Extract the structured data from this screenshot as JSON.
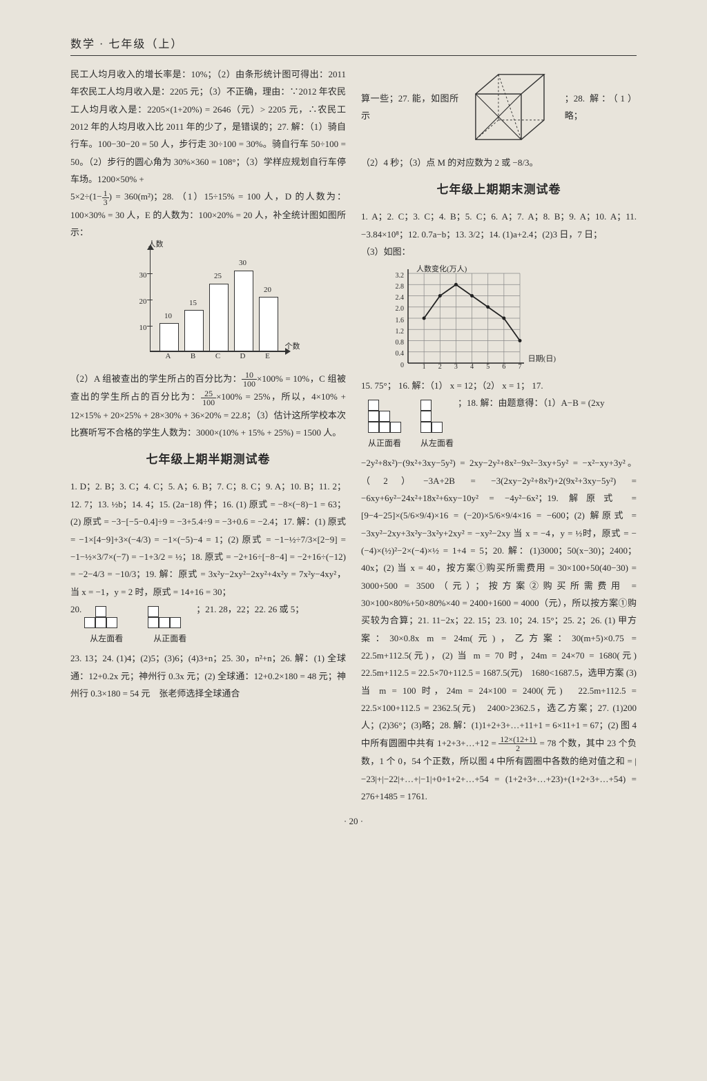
{
  "header": "数学 · 七年级（上）",
  "page_number": "· 20 ·",
  "left": {
    "para1": "民工人均月收入的增长率是：10%；（2）由条形统计图可得出：2011 年农民工人均月收入是：2205 元；（3）不正确，理由：∵2012 年农民工人均月收入是：2205×(1+20%) = 2646（元）> 2205 元，∴农民工 2012 年的人均月收入比 2011 年的少了，是错误的；27. 解：（1）骑自行车。100−30−20 = 50 人，步行走 30÷100 = 30%。骑自行车 50÷100 = 50。（2）步行的圆心角为 30%×360 = 108°；（3）学样应规划自行车停车场。1200×50% +",
    "para2_before_frac": "5×2÷(1−",
    "para2_frac_n": "1",
    "para2_frac_d": "3",
    "para2_after_frac": ") = 360(m²)；28. （1）15÷15% = 100 人，D 的人数为：100×30% = 30 人，E 的人数为：100×20% = 20 人，补全统计图如图所示：",
    "barchart": {
      "ytitle": "人数",
      "xtitle": "个数",
      "y_ticks": [
        10,
        20,
        30
      ],
      "y_max": 35,
      "categories": [
        "A",
        "B",
        "C",
        "D",
        "E"
      ],
      "values": [
        10,
        15,
        25,
        30,
        20
      ],
      "bar_color": "#ffffff",
      "border_color": "#333333"
    },
    "para3": "（2）A 组被查出的学生所占的百分比为：",
    "frac10_n": "10",
    "frac10_d": "100",
    "para3b": "×100% = 10%，C 组被查出的学生所占的百分比为：",
    "frac25_n": "25",
    "frac25_d": "100",
    "para3c": "×100% = 25%，所以，4×10% + 12×15% + 20×25% + 28×30% + 36×20% = 22.8；（3）估计这所学校本次比赛听写不合格的学生人数为：3000×(10% + 15% + 25%) = 1500 人。",
    "section_title": "七年级上期半期测试卷",
    "midterm": "1. D；2. B；3. C；4. C；5. A；6. B；7. C；8. C；9. A；10. B；11. 2；12. 7；13. ½b；14. 4；15. (2a−18) 件；16. (1) 原式 = −8×(−8)−1 = 63；(2) 原式 = −3−[−5−0.4]÷9 = −3+5.4÷9 = −3+0.6 = −2.4；17. 解：(1) 原式 = −1×[4−9]+3×(−4/3) = −1×(−5)−4 = 1；(2) 原式 = −1−½÷7/3×[2−9] = −1−½×3/7×(−7) = −1+3/2 = ½；18. 原式 = −2+16÷[−8−4] = −2+16÷(−12) = −2−4/3 = −10/3；19. 解：原式 = 3x²y−2xy²−2xy²+4x²y = 7x²y−4xy²，当 x = −1，y = 2 时，原式 = 14+16 = 30；",
    "views_caption_left": "从左面看",
    "views_caption_right": "从正面看",
    "views_side_text": "；21. 28，22；22. 26 或 5；",
    "item20_label": "20.",
    "bottom": "23. 13；24. (1)4；(2)5；(3)6；(4)3+n；25. 30，n²+n；26. 解：(1) 全球通：12+0.2x 元；神州行 0.3x 元；(2) 全球通：12+0.2×180 = 48 元；神州行 0.3×180 = 54 元　张老师选择全球通合"
  },
  "right": {
    "cube_before": "算一些；27. 能，如图所示",
    "cube_after": "；28. 解：（1）略；",
    "para_after_cube": "（2）4 秒；（3）点 M 的对应数为 2 或 −8/3。",
    "section_title": "七年级上期期末测试卷",
    "final_top": "1. A；2. C；3. C；4. B；5. C；6. A；7. A；8. B；9. A；10. A；11. −3.84×10⁸；12. 0.7a−b；13. 3/2；14. (1)a+2.4；(2)3 日，7 日；",
    "linechart_prefix": "（3）如图：",
    "linechart": {
      "title": "人数变化(万人)",
      "xlabel": "日期(日)",
      "ylim": [
        0,
        3.2
      ],
      "ytick_step": 0.4,
      "y_ticks": [
        "0.4",
        "0.8",
        "1.2",
        "1.6",
        "2.0",
        "2.4",
        "2.8",
        "3.2"
      ],
      "x_ticks": [
        "1",
        "2",
        "3",
        "4",
        "5",
        "6",
        "7"
      ],
      "points": [
        [
          1,
          1.6
        ],
        [
          2,
          2.4
        ],
        [
          3,
          2.8
        ],
        [
          4,
          2.4
        ],
        [
          5,
          2.0
        ],
        [
          6,
          1.6
        ],
        [
          7,
          0.8
        ]
      ],
      "grid_color": "#888888",
      "line_color": "#222222"
    },
    "line15": "15. 75°； 16. 解：（1） x = 12；（2） x = 1； 17.",
    "views_caption_front": "从正面看",
    "views_caption_left": "从左面看",
    "views_side_text": "；18. 解：由题意得：（1）A−B = (2xy",
    "final_body": "−2y²+8x²)−(9x²+3xy−5y²) = 2xy−2y²+8x²−9x²−3xy+5y² = −x²−xy+3y²。（2）−3A+2B = −3(2xy−2y²+8x²)+2(9x²+3xy−5y²) = −6xy+6y²−24x²+18x²+6xy−10y² = −4y²−6x²；19. 解原式 = [9−4−25]×(5/6×9/4)×16 = (−20)×5/6×9/4×16 = −600；(2) 解原式 = −3xy²−2xy+3x²y−3x²y+2xy² = −xy²−2xy 当 x = −4，y = ½时，原式 = −(−4)×(½)²−2×(−4)×½ = 1+4 = 5；20. 解：(1)3000；50(x−30)；2400；40x；(2) 当 x = 40，按方案①购买所需费用 = 30×100+50(40−30) = 3000+500 = 3500（元）；按方案②购买所需费用 = 30×100×80%+50×80%×40 = 2400+1600 = 4000（元），所以按方案①购买较为合算；21. 11−2x；22. 15；23. 10；24. 15°；25. 2；26. (1) 甲方案：30×0.8x m = 24m(元)，乙方案：30(m+5)×0.75 = 22.5m+112.5(元)，(2) 当 m = 70 时，24m = 24×70 = 1680(元)　22.5m+112.5 = 22.5×70+112.5 = 1687.5(元)　1680<1687.5，选甲方案 (3) 当 m = 100 时，24m = 24×100 = 2400(元)　22.5m+112.5 = 22.5×100+112.5 = 2362.5(元)　2400>2362.5，选乙方案；27. (1)200 人；(2)36°；(3)略；28. 解：(1)1+2+3+…+11+1 = 6×11+1 = 67；(2) 图 4 中所有圆圈中共有 1+2+3+…+12 =",
    "final_frac_n": "12×(12+1)",
    "final_frac_d": "2",
    "final_tail": " = 78 个数，其中 23 个负数，1 个 0，54 个正数，所以图 4 中所有圆圈中各数的绝对值之和 = |−23|+|−22|+…+|−1|+0+1+2+…+54 = (1+2+3+…+23)+(1+2+3+…+54) = 276+1485 = 1761."
  }
}
